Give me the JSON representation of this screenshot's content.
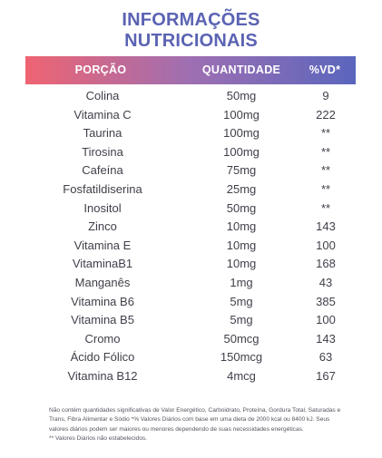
{
  "title": {
    "line1": "INFORMAÇÕES",
    "line2": "NUTRICIONAIS"
  },
  "table": {
    "headers": {
      "porcao": "PORÇÃO",
      "quantidade": "QUANTIDADE",
      "vd": "%VD*"
    },
    "rows": [
      {
        "name": "Colina",
        "qty": "50mg",
        "vd": "9"
      },
      {
        "name": "Vitamina C",
        "qty": "100mg",
        "vd": "222"
      },
      {
        "name": "Taurina",
        "qty": "100mg",
        "vd": "**"
      },
      {
        "name": "Tirosina",
        "qty": "100mg",
        "vd": "**"
      },
      {
        "name": "Cafeína",
        "qty": "75mg",
        "vd": "**"
      },
      {
        "name": "Fosfatildiserina",
        "qty": "25mg",
        "vd": "**"
      },
      {
        "name": "Inositol",
        "qty": "50mg",
        "vd": "**"
      },
      {
        "name": "Zinco",
        "qty": "10mg",
        "vd": "143"
      },
      {
        "name": "Vitamina E",
        "qty": "10mg",
        "vd": "100"
      },
      {
        "name": "VitaminaB1",
        "qty": "10mg",
        "vd": "168"
      },
      {
        "name": "Manganês",
        "qty": "1mg",
        "vd": "43"
      },
      {
        "name": "Vitamina B6",
        "qty": "5mg",
        "vd": "385"
      },
      {
        "name": "Vitamina B5",
        "qty": "5mg",
        "vd": "100"
      },
      {
        "name": "Cromo",
        "qty": "50mcg",
        "vd": "143"
      },
      {
        "name": "Ácido Fólico",
        "qty": "150mcg",
        "vd": "63"
      },
      {
        "name": "Vitamina B12",
        "qty": "4mcg",
        "vd": "167"
      }
    ]
  },
  "footnote": {
    "text": "Não contém quantidades significativas de Valor Energético, Carboidrato, Proteína, Gordura Total, Saturadas e Trans, Fibra Alimentar e Sódio *% Valores Diários com base em uma dieta de 2000 kcal ou 8400 kJ. Seus valores diários podem ser maiores ou menores dependendo de suas necessidades energéticas.",
    "note": "** Valores Diários não estabelecidos."
  },
  "colors": {
    "title": "#5b63b3",
    "gradient_start": "#ef6472",
    "gradient_end": "#5a66bd"
  }
}
